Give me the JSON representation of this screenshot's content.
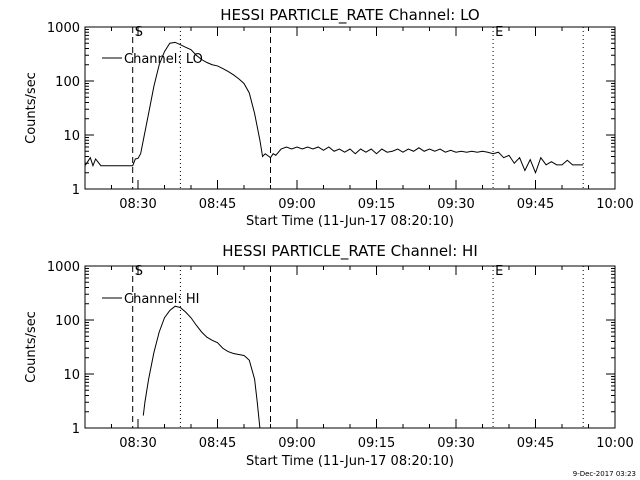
{
  "footer": {
    "timestamp": "9-Dec-2017 03:23"
  },
  "chart_data": [
    {
      "type": "line",
      "title": "HESSI PARTICLE_RATE Channel: LO",
      "xlabel": "Start Time (11-Jun-17 08:20:10)",
      "ylabel": "Counts/sec",
      "y_scale": "log",
      "ylim": [
        1,
        1000
      ],
      "xlim": [
        "08:20",
        "10:00"
      ],
      "x_ticks": [
        "08:30",
        "08:45",
        "09:00",
        "09:15",
        "09:30",
        "09:45",
        "10:00"
      ],
      "y_ticks": [
        "1",
        "10",
        "100",
        "1000"
      ],
      "legend": {
        "placement": "top-left",
        "entries": [
          "Channel: LO"
        ]
      },
      "markers": [
        {
          "label": "S",
          "time": "08:29",
          "style": "dashed"
        },
        {
          "label": "",
          "time": "08:38",
          "style": "dotted"
        },
        {
          "label": "",
          "time": "08:55",
          "style": "dashed"
        },
        {
          "label": "E",
          "time": "09:37",
          "style": "dotted"
        },
        {
          "label": "",
          "time": "09:54",
          "style": "dotted"
        }
      ],
      "series": [
        {
          "name": "Channel: LO",
          "color": "#000000",
          "points": [
            [
              "08:20",
              2.7
            ],
            [
              "08:21",
              3.8
            ],
            [
              "08:21.5",
              2.7
            ],
            [
              "08:22",
              3.6
            ],
            [
              "08:23",
              2.7
            ],
            [
              "08:25",
              2.7
            ],
            [
              "08:27",
              2.7
            ],
            [
              "08:29",
              2.7
            ],
            [
              "08:29.5",
              3.6
            ],
            [
              "08:30",
              3.7
            ],
            [
              "08:30.5",
              4.5
            ],
            [
              "08:31",
              8
            ],
            [
              "08:32",
              25
            ],
            [
              "08:33",
              80
            ],
            [
              "08:34",
              200
            ],
            [
              "08:35",
              350
            ],
            [
              "08:36",
              500
            ],
            [
              "08:37",
              520
            ],
            [
              "08:38",
              470
            ],
            [
              "08:39",
              420
            ],
            [
              "08:40",
              380
            ],
            [
              "08:41",
              300
            ],
            [
              "08:42",
              250
            ],
            [
              "08:43",
              220
            ],
            [
              "08:44",
              200
            ],
            [
              "08:45",
              190
            ],
            [
              "08:46",
              170
            ],
            [
              "08:47",
              150
            ],
            [
              "08:48",
              130
            ],
            [
              "08:49",
              110
            ],
            [
              "08:50",
              90
            ],
            [
              "08:51",
              60
            ],
            [
              "08:52",
              25
            ],
            [
              "08:53",
              8
            ],
            [
              "08:53.5",
              4
            ],
            [
              "08:54",
              4.5
            ],
            [
              "08:55",
              3.8
            ],
            [
              "08:55.5",
              4.5
            ],
            [
              "08:56",
              4.2
            ],
            [
              "08:57",
              5.5
            ],
            [
              "08:58",
              6
            ],
            [
              "08:59",
              5.5
            ],
            [
              "09:00",
              6
            ],
            [
              "09:01",
              5.5
            ],
            [
              "09:02",
              6
            ],
            [
              "09:03",
              5.5
            ],
            [
              "09:04",
              6
            ],
            [
              "09:05",
              5.2
            ],
            [
              "09:06",
              6
            ],
            [
              "09:07",
              5
            ],
            [
              "09:08",
              5.5
            ],
            [
              "09:09",
              4.8
            ],
            [
              "09:10",
              5.5
            ],
            [
              "09:11",
              4.5
            ],
            [
              "09:12",
              5.5
            ],
            [
              "09:13",
              4.8
            ],
            [
              "09:14",
              5.5
            ],
            [
              "09:15",
              4.5
            ],
            [
              "09:16",
              5.5
            ],
            [
              "09:17",
              4.8
            ],
            [
              "09:18",
              5
            ],
            [
              "09:19",
              5.5
            ],
            [
              "09:20",
              4.8
            ],
            [
              "09:21",
              5.5
            ],
            [
              "09:22",
              5
            ],
            [
              "09:23",
              5.8
            ],
            [
              "09:24",
              5
            ],
            [
              "09:25",
              5.5
            ],
            [
              "09:26",
              5
            ],
            [
              "09:27",
              5.5
            ],
            [
              "09:28",
              4.8
            ],
            [
              "09:29",
              5.2
            ],
            [
              "09:30",
              4.8
            ],
            [
              "09:31",
              5
            ],
            [
              "09:32",
              4.8
            ],
            [
              "09:33",
              5
            ],
            [
              "09:34",
              4.8
            ],
            [
              "09:35",
              5
            ],
            [
              "09:36",
              4.8
            ],
            [
              "09:37",
              4.5
            ],
            [
              "09:38",
              4.8
            ],
            [
              "09:39",
              3.8
            ],
            [
              "09:40",
              4.2
            ],
            [
              "09:41",
              3
            ],
            [
              "09:42",
              3.8
            ],
            [
              "09:43",
              2.2
            ],
            [
              "09:44",
              3.5
            ],
            [
              "09:45",
              2
            ],
            [
              "09:46",
              3.8
            ],
            [
              "09:47",
              2.8
            ],
            [
              "09:48",
              3.2
            ],
            [
              "09:49",
              2.8
            ],
            [
              "09:50",
              2.8
            ],
            [
              "09:51",
              3.4
            ],
            [
              "09:52",
              2.8
            ],
            [
              "09:54",
              2.8
            ]
          ]
        }
      ]
    },
    {
      "type": "line",
      "title": "HESSI PARTICLE_RATE Channel: HI",
      "xlabel": "Start Time (11-Jun-17 08:20:10)",
      "ylabel": "Counts/sec",
      "y_scale": "log",
      "ylim": [
        1,
        1000
      ],
      "xlim": [
        "08:20",
        "10:00"
      ],
      "x_ticks": [
        "08:30",
        "08:45",
        "09:00",
        "09:15",
        "09:30",
        "09:45",
        "10:00"
      ],
      "y_ticks": [
        "1",
        "10",
        "100",
        "1000"
      ],
      "legend": {
        "placement": "top-left",
        "entries": [
          "Channel: HI"
        ]
      },
      "markers": [
        {
          "label": "S",
          "time": "08:29",
          "style": "dashed"
        },
        {
          "label": "",
          "time": "08:38",
          "style": "dotted"
        },
        {
          "label": "",
          "time": "08:55",
          "style": "dashed"
        },
        {
          "label": "E",
          "time": "09:37",
          "style": "dotted"
        },
        {
          "label": "",
          "time": "09:54",
          "style": "dotted"
        }
      ],
      "series": [
        {
          "name": "Channel: HI",
          "color": "#000000",
          "points": [
            [
              "08:31",
              1.7
            ],
            [
              "08:31.3",
              3
            ],
            [
              "08:32",
              8
            ],
            [
              "08:33",
              25
            ],
            [
              "08:34",
              60
            ],
            [
              "08:35",
              110
            ],
            [
              "08:36",
              150
            ],
            [
              "08:37",
              180
            ],
            [
              "08:38",
              170
            ],
            [
              "08:39",
              140
            ],
            [
              "08:40",
              110
            ],
            [
              "08:41",
              80
            ],
            [
              "08:42",
              60
            ],
            [
              "08:43",
              48
            ],
            [
              "08:44",
              42
            ],
            [
              "08:45",
              38
            ],
            [
              "08:46",
              30
            ],
            [
              "08:47",
              26
            ],
            [
              "08:48",
              24
            ],
            [
              "08:49",
              23
            ],
            [
              "08:50",
              22
            ],
            [
              "08:50.5",
              20
            ],
            [
              "08:51",
              18
            ],
            [
              "08:52",
              8
            ],
            [
              "08:52.5",
              3
            ],
            [
              "08:53",
              1
            ]
          ]
        }
      ]
    }
  ]
}
